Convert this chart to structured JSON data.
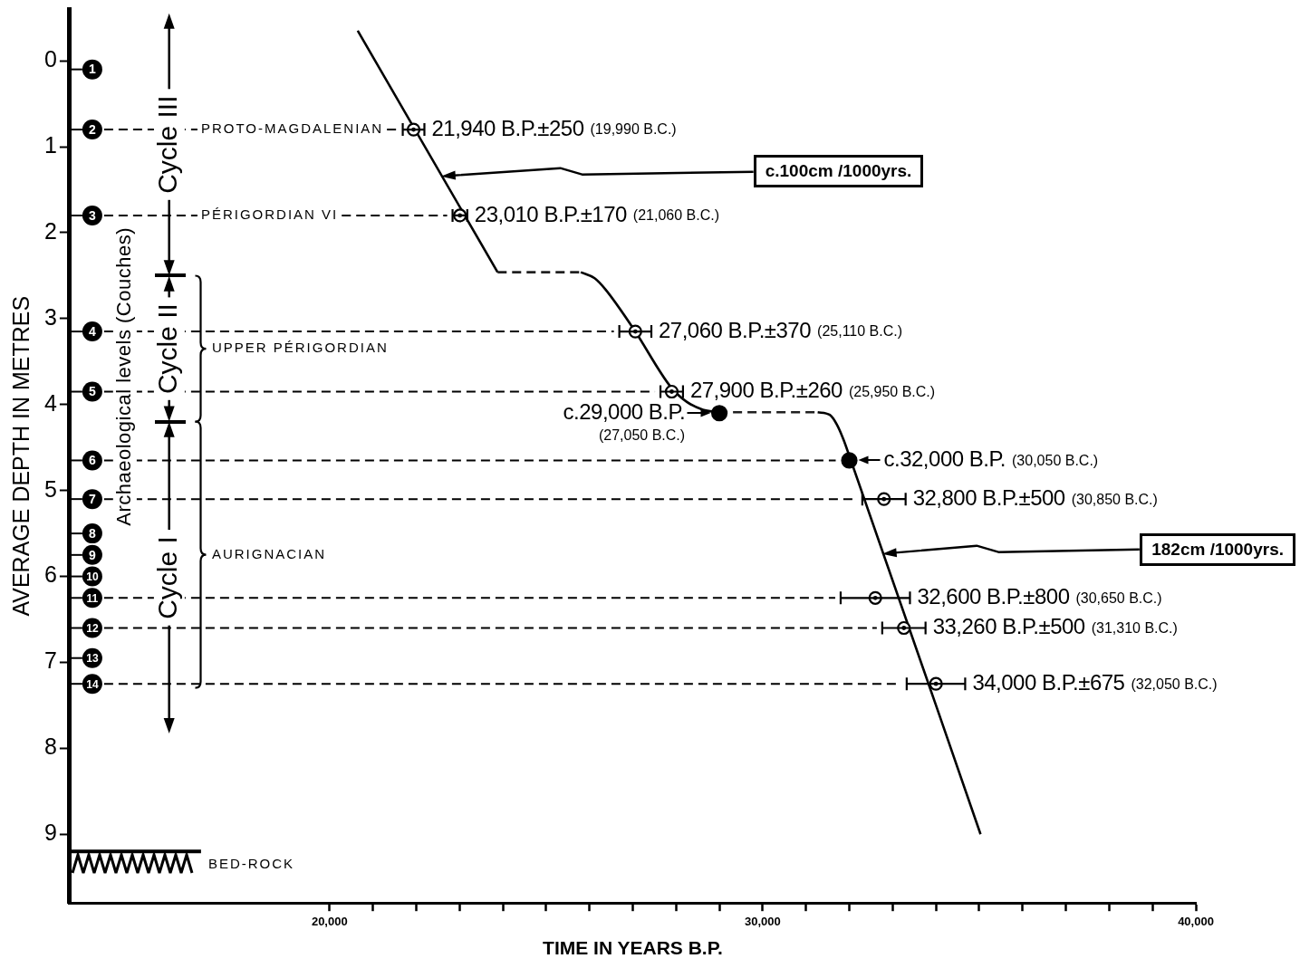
{
  "chart_data": {
    "type": "scatter",
    "xlabel": "TIME IN YEARS B.P.",
    "ylabel": "AVERAGE DEPTH IN METRES",
    "xlim": [
      14000,
      40000
    ],
    "xticks": [
      {
        "value": 20000,
        "label": "20,000"
      },
      {
        "value": 21000,
        "label": null
      },
      {
        "value": 22000,
        "label": null
      },
      {
        "value": 23000,
        "label": null
      },
      {
        "value": 24000,
        "label": null
      },
      {
        "value": 25000,
        "label": null
      },
      {
        "value": 26000,
        "label": null
      },
      {
        "value": 27000,
        "label": null
      },
      {
        "value": 28000,
        "label": null
      },
      {
        "value": 29000,
        "label": null
      },
      {
        "value": 30000,
        "label": "30,000"
      },
      {
        "value": 31000,
        "label": null
      },
      {
        "value": 32000,
        "label": null
      },
      {
        "value": 33000,
        "label": null
      },
      {
        "value": 34000,
        "label": null
      },
      {
        "value": 35000,
        "label": null
      },
      {
        "value": 36000,
        "label": null
      },
      {
        "value": 37000,
        "label": null
      },
      {
        "value": 38000,
        "label": null
      },
      {
        "value": 39000,
        "label": null
      },
      {
        "value": 40000,
        "label": "40,000"
      }
    ],
    "ylim": [
      9.8,
      -0.6
    ],
    "yticks": [
      0,
      1,
      2,
      3,
      4,
      5,
      6,
      7,
      8,
      9
    ],
    "marker": "circle",
    "series": [
      {
        "type": "line",
        "color": "#000000",
        "line_style": "solid",
        "marker": "none",
        "x": [
          20650,
          23880,
          24800,
          25800,
          26120,
          26370,
          27020,
          27870,
          28250,
          28620,
          28980,
          30000,
          31270,
          31550,
          31710,
          31860,
          32030,
          35030
        ],
        "values": [
          -0.35,
          2.46,
          null,
          2.46,
          2.53,
          2.66,
          3.12,
          3.79,
          3.97,
          4.06,
          4.09,
          null,
          4.09,
          4.12,
          4.23,
          4.4,
          4.64,
          9.0
        ]
      },
      {
        "type": "line",
        "color": "#202020",
        "line_style": "dashed",
        "marker": "none",
        "x": [
          23880,
          25800,
          27000,
          28980,
          31270
        ],
        "values": [
          2.46,
          2.46,
          null,
          4.09,
          4.09
        ]
      },
      {
        "color": "#000000",
        "x": [
          21940,
          23010,
          27060,
          27900,
          32800,
          32600,
          33260,
          34000
        ],
        "values": [
          0.8,
          1.8,
          3.15,
          3.85,
          5.1,
          6.25,
          6.6,
          7.25
        ],
        "xerrors": [
          250,
          170,
          370,
          260,
          500,
          800,
          500,
          675
        ],
        "value_labels": [
          "21,940 B.P.±250 (19,990 B.C.)",
          "23,010 B.P.±170 (21,060 B.C.)",
          "27,060 B.P.±370 (25,110 B.C.)",
          "27,900 B.P.±260 (25,950 B.C.)",
          "32,800 B.P.±500 (30,850 B.C.)",
          "32,600 B.P.±800 (30,650 B.C.)",
          "33,260 B.P.±500 (31,310 B.C.)",
          "34,000 B.P.±675 (32,050 B.C.)"
        ]
      },
      {
        "color": "#000000",
        "x": [
          29000,
          32000
        ],
        "values": [
          4.1,
          4.65
        ],
        "value_labels": [
          "c.29,000 B.P. (27,050 B.C.)",
          "c.32,000 B.P. (30,050 B.C.)"
        ]
      }
    ],
    "ref_lines": [
      {
        "axis": "y",
        "value": 0.8,
        "label": "PROTO-MAGDALENIAN",
        "line_style": "dashed"
      },
      {
        "axis": "y",
        "value": 1.8,
        "label": "PÉRIGORDIAN VI",
        "line_style": "dashed"
      },
      {
        "axis": "y",
        "value": 3.15,
        "line_style": "dashed"
      },
      {
        "axis": "y",
        "value": 3.85,
        "line_style": "dashed"
      },
      {
        "axis": "y",
        "value": 4.65,
        "line_style": "dashed"
      },
      {
        "axis": "y",
        "value": 5.1,
        "line_style": "dashed"
      },
      {
        "axis": "y",
        "value": 6.25,
        "line_style": "dashed"
      },
      {
        "axis": "y",
        "value": 6.6,
        "line_style": "dashed"
      },
      {
        "axis": "y",
        "value": 7.25,
        "line_style": "dashed"
      },
      {
        "axis": "y",
        "value": 9.2,
        "label": "BED-ROCK",
        "line_style": "solid"
      }
    ],
    "annotations": [
      {
        "text": "1",
        "y": 0.1
      },
      {
        "text": "2",
        "y": 0.8
      },
      {
        "text": "3",
        "y": 1.8
      },
      {
        "text": "4",
        "y": 3.15
      },
      {
        "text": "5",
        "y": 3.85
      },
      {
        "text": "6",
        "y": 4.65
      },
      {
        "text": "7",
        "y": 5.1
      },
      {
        "text": "8",
        "y": 5.5
      },
      {
        "text": "9",
        "y": 5.75
      },
      {
        "text": "10",
        "y": 6.0
      },
      {
        "text": "11",
        "y": 6.25
      },
      {
        "text": "12",
        "y": 6.6
      },
      {
        "text": "13",
        "y": 6.95
      },
      {
        "text": "14",
        "y": 7.25
      },
      "Archaeological levels (Couches)",
      "Cycle III",
      "Cycle II",
      "Cycle I",
      "UPPER PÉRIGORDIAN",
      "AURIGNACIAN",
      "c.100cm /1000yrs.",
      "182cm /1000yrs."
    ]
  }
}
